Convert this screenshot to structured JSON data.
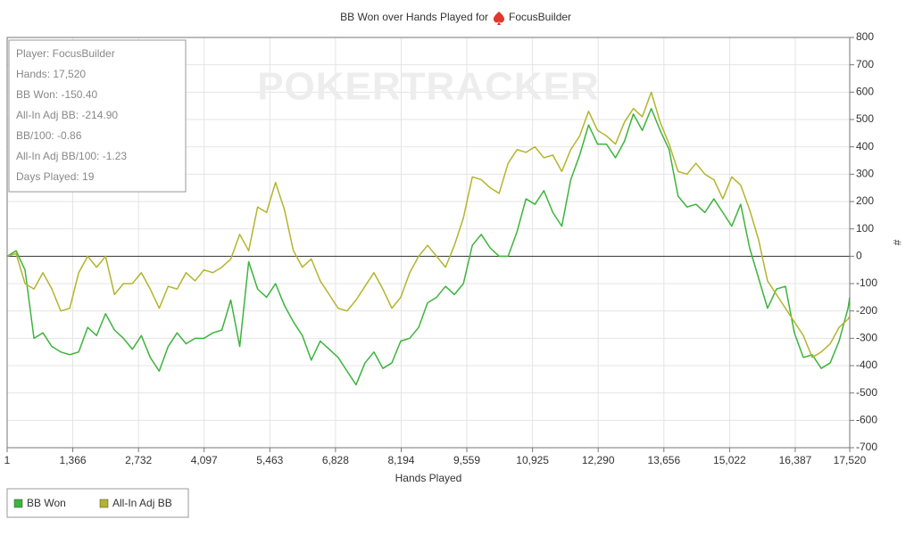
{
  "chart_data": {
    "type": "line",
    "title": "BB Won over Hands Played for",
    "player": "FocusBuilder",
    "watermark": "POKERTRACKER",
    "xlabel": "Hands Played",
    "ylabel": "#",
    "info_box": [
      "Player: FocusBuilder",
      "Hands: 17,520",
      "BB Won: -150.40",
      "All-In Adj BB: -214.90",
      "BB/100: -0.86",
      "All-In Adj BB/100: -1.23",
      "Days Played: 19"
    ],
    "xlim": [
      1,
      17520
    ],
    "ylim": [
      -700,
      800
    ],
    "xticks": [
      1,
      {
        "value": 1366,
        "label": "1,366"
      },
      {
        "value": 2732,
        "label": "2,732"
      },
      {
        "value": 4097,
        "label": "4,097"
      },
      {
        "value": 5463,
        "label": "5,463"
      },
      {
        "value": 6828,
        "label": "6,828"
      },
      {
        "value": 8194,
        "label": "8,194"
      },
      {
        "value": 9559,
        "label": "9,559"
      },
      {
        "value": 10925,
        "label": "10,925"
      },
      {
        "value": 12290,
        "label": "12,290"
      },
      {
        "value": 13656,
        "label": "13,656"
      },
      {
        "value": 15022,
        "label": "15,022"
      },
      {
        "value": 16387,
        "label": "16,387"
      },
      {
        "value": 17520,
        "label": "17,520"
      }
    ],
    "yticks": [
      -700,
      -600,
      -500,
      -400,
      -300,
      -200,
      -100,
      0,
      100,
      200,
      300,
      400,
      500,
      600,
      700,
      800
    ],
    "grid": true,
    "legend": "bottom-left",
    "x": [
      1,
      187,
      373,
      559,
      745,
      931,
      1117,
      1303,
      1489,
      1675,
      1861,
      2047,
      2233,
      2419,
      2605,
      2791,
      2977,
      3163,
      3349,
      3535,
      3721,
      3907,
      4093,
      4279,
      4465,
      4651,
      4837,
      5023,
      5209,
      5395,
      5581,
      5767,
      5953,
      6139,
      6325,
      6511,
      6697,
      6883,
      7069,
      7255,
      7441,
      7627,
      7813,
      7999,
      8185,
      8371,
      8557,
      8743,
      8929,
      9115,
      9301,
      9487,
      9673,
      9859,
      10045,
      10231,
      10417,
      10603,
      10789,
      10975,
      11161,
      11347,
      11533,
      11719,
      11905,
      12091,
      12277,
      12463,
      12649,
      12835,
      13021,
      13207,
      13393,
      13579,
      13765,
      13951,
      14137,
      14323,
      14509,
      14695,
      14881,
      15067,
      15253,
      15439,
      15625,
      15811,
      15997,
      16183,
      16369,
      16555,
      16741,
      16927,
      17113,
      17299,
      17485,
      17520
    ],
    "series": [
      {
        "name": "BB Won",
        "color": "#3cb43c",
        "values": [
          0,
          20,
          -50,
          -300,
          -280,
          -330,
          -350,
          -360,
          -350,
          -260,
          -290,
          -210,
          -270,
          -300,
          -340,
          -290,
          -370,
          -420,
          -330,
          -280,
          -320,
          -300,
          -300,
          -280,
          -270,
          -160,
          -330,
          -20,
          -120,
          -150,
          -100,
          -180,
          -240,
          -290,
          -380,
          -310,
          -340,
          -370,
          -420,
          -470,
          -390,
          -350,
          -410,
          -390,
          -310,
          -300,
          -260,
          -170,
          -150,
          -110,
          -140,
          -100,
          40,
          80,
          30,
          0,
          0,
          90,
          210,
          190,
          240,
          160,
          110,
          280,
          370,
          480,
          410,
          410,
          360,
          420,
          520,
          460,
          540,
          460,
          390,
          220,
          180,
          190,
          160,
          210,
          160,
          110,
          190,
          30,
          -80,
          -190,
          -120,
          -110,
          -280,
          -370,
          -360,
          -410,
          -390,
          -310,
          -190,
          -150
        ]
      },
      {
        "name": "All-In Adj BB",
        "color": "#b4b42d",
        "values": [
          0,
          10,
          -100,
          -120,
          -60,
          -120,
          -200,
          -190,
          -60,
          0,
          -40,
          0,
          -140,
          -100,
          -100,
          -60,
          -120,
          -190,
          -110,
          -120,
          -60,
          -90,
          -50,
          -60,
          -40,
          -10,
          80,
          20,
          180,
          160,
          270,
          170,
          20,
          -40,
          -10,
          -90,
          -140,
          -190,
          -200,
          -160,
          -110,
          -60,
          -120,
          -190,
          -150,
          -60,
          0,
          40,
          0,
          -40,
          40,
          140,
          290,
          280,
          250,
          230,
          340,
          390,
          380,
          400,
          360,
          370,
          310,
          390,
          440,
          530,
          460,
          440,
          410,
          490,
          540,
          510,
          600,
          490,
          410,
          310,
          300,
          340,
          300,
          280,
          210,
          290,
          260,
          170,
          60,
          -90,
          -140,
          -190,
          -240,
          -290,
          -370,
          -350,
          -320,
          -260,
          -230,
          -220
        ]
      }
    ]
  }
}
